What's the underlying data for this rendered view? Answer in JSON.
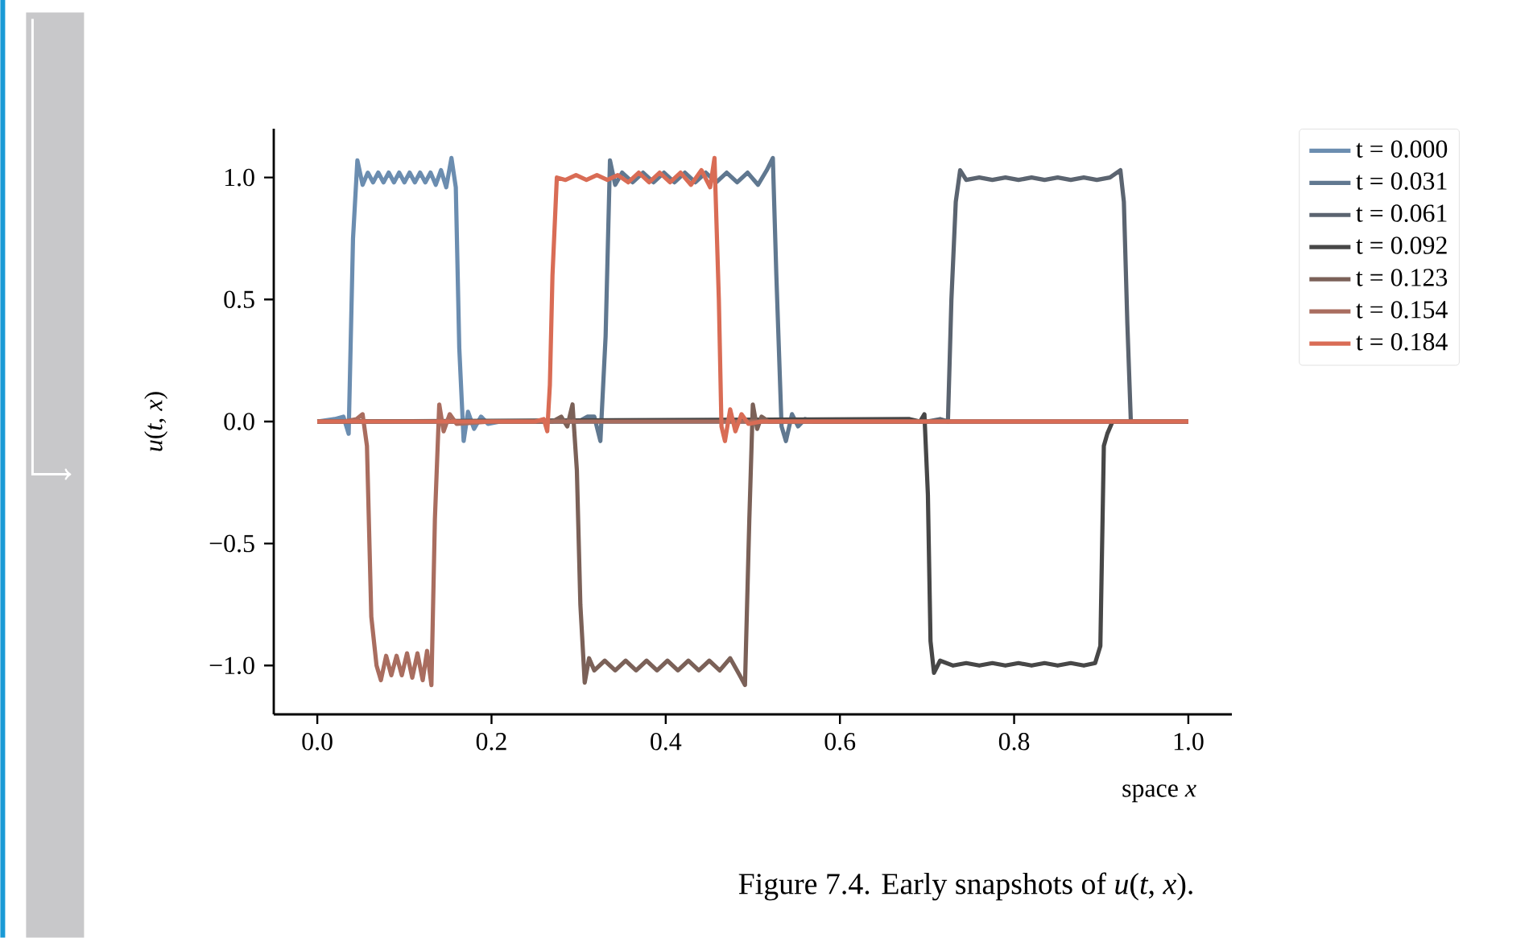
{
  "chart_data": {
    "type": "line",
    "xlabel": "space *x*",
    "ylabel": "*u*(*t*, *x*)",
    "xlim": [
      -0.05,
      1.05
    ],
    "ylim": [
      -1.2,
      1.2
    ],
    "xticks": [
      {
        "value": 0,
        "label": "0.0"
      },
      {
        "value": 0.2,
        "label": "0.2"
      },
      {
        "value": 0.4,
        "label": "0.4"
      },
      {
        "value": 0.6,
        "label": "0.6"
      },
      {
        "value": 0.8,
        "label": "0.8"
      },
      {
        "value": 1,
        "label": "1.0"
      }
    ],
    "yticks": [
      {
        "value": -1,
        "label": "−1.0"
      },
      {
        "value": -0.5,
        "label": "−0.5"
      },
      {
        "value": 0,
        "label": "0.0"
      },
      {
        "value": 0.5,
        "label": "0.5"
      },
      {
        "value": 1,
        "label": "1.0"
      }
    ],
    "legend": "top right",
    "marker": "none",
    "line_style": "solid",
    "grid": false,
    "annotations": [
      "Figure 7.4. Early snapshots of *u*(*t*, *x*)."
    ],
    "series": [
      {
        "name": "t = 0.000",
        "color": "#6b8db0",
        "x": [
          0,
          0.02,
          0.03,
          0.036,
          0.041,
          0.046,
          0.052,
          0.058,
          0.064,
          0.07,
          0.076,
          0.082,
          0.088,
          0.094,
          0.1,
          0.106,
          0.112,
          0.118,
          0.124,
          0.13,
          0.136,
          0.142,
          0.148,
          0.154,
          0.159,
          0.163,
          0.168,
          0.173,
          0.18,
          0.188,
          0.196,
          0.21,
          1.0
        ],
        "values": [
          0,
          0.01,
          0.02,
          -0.05,
          0.75,
          1.07,
          0.97,
          1.02,
          0.98,
          1.02,
          0.98,
          1.02,
          0.98,
          1.02,
          0.98,
          1.02,
          0.98,
          1.02,
          0.98,
          1.02,
          0.97,
          1.03,
          0.96,
          1.08,
          0.96,
          0.3,
          -0.08,
          0.04,
          -0.03,
          0.02,
          -0.01,
          0,
          0
        ]
      },
      {
        "name": "t = 0.031",
        "color": "#607890",
        "x": [
          0,
          0.3,
          0.31,
          0.318,
          0.325,
          0.331,
          0.336,
          0.342,
          0.35,
          0.362,
          0.374,
          0.386,
          0.398,
          0.41,
          0.422,
          0.434,
          0.446,
          0.458,
          0.47,
          0.482,
          0.494,
          0.506,
          0.516,
          0.523,
          0.527,
          0.533,
          0.538,
          0.545,
          0.552,
          0.56,
          0.57,
          0.6,
          1.0
        ],
        "values": [
          0,
          0,
          0.02,
          0.02,
          -0.08,
          0.35,
          1.07,
          0.97,
          1.02,
          0.98,
          1.02,
          0.98,
          1.02,
          0.98,
          1.02,
          0.98,
          1.02,
          0.98,
          1.02,
          0.98,
          1.02,
          0.97,
          1.03,
          1.08,
          0.6,
          -0.02,
          -0.08,
          0.03,
          -0.02,
          0.01,
          0,
          0,
          0
        ]
      },
      {
        "name": "t = 0.061",
        "color": "#5b6470",
        "x": [
          0,
          0.7,
          0.715,
          0.724,
          0.728,
          0.733,
          0.738,
          0.745,
          0.76,
          0.775,
          0.79,
          0.805,
          0.82,
          0.835,
          0.85,
          0.865,
          0.88,
          0.895,
          0.91,
          0.922,
          0.926,
          0.93,
          0.934,
          0.94,
          1.0
        ],
        "values": [
          0,
          0,
          0.01,
          0,
          0.5,
          0.9,
          1.03,
          0.99,
          1.0,
          0.99,
          1.0,
          0.99,
          1.0,
          0.99,
          1.0,
          0.99,
          1.0,
          0.99,
          1.0,
          1.03,
          0.9,
          0.4,
          0,
          0,
          0
        ]
      },
      {
        "name": "t = 0.092",
        "color": "#474747",
        "x": [
          0,
          0.68,
          0.692,
          0.697,
          0.701,
          0.704,
          0.708,
          0.715,
          0.73,
          0.745,
          0.76,
          0.775,
          0.79,
          0.805,
          0.82,
          0.835,
          0.85,
          0.865,
          0.88,
          0.893,
          0.899,
          0.903,
          0.907,
          0.913,
          1.0
        ],
        "values": [
          0,
          0.01,
          0,
          0.03,
          -0.3,
          -0.9,
          -1.03,
          -0.98,
          -1.0,
          -0.99,
          -1.0,
          -0.99,
          -1.0,
          -0.99,
          -1.0,
          -0.99,
          -1.0,
          -0.99,
          -1.0,
          -0.99,
          -0.92,
          -0.1,
          -0.05,
          0,
          0
        ]
      },
      {
        "name": "t = 0.123",
        "color": "#7b6158",
        "x": [
          0,
          0.27,
          0.28,
          0.287,
          0.293,
          0.298,
          0.302,
          0.307,
          0.312,
          0.318,
          0.33,
          0.342,
          0.354,
          0.366,
          0.378,
          0.39,
          0.402,
          0.414,
          0.426,
          0.438,
          0.45,
          0.462,
          0.474,
          0.485,
          0.491,
          0.496,
          0.5,
          0.505,
          0.51,
          0.518,
          0.53,
          1.0
        ],
        "values": [
          0,
          0,
          0.02,
          -0.02,
          0.07,
          -0.2,
          -0.75,
          -1.07,
          -0.97,
          -1.02,
          -0.98,
          -1.02,
          -0.98,
          -1.02,
          -0.98,
          -1.02,
          -0.98,
          -1.02,
          -0.98,
          -1.02,
          -0.98,
          -1.02,
          -0.97,
          -1.04,
          -1.08,
          -0.4,
          0.07,
          -0.03,
          0.02,
          0,
          0,
          0
        ]
      },
      {
        "name": "t = 0.154",
        "color": "#a96d5f",
        "x": [
          0,
          0.03,
          0.045,
          0.052,
          0.057,
          0.062,
          0.068,
          0.073,
          0.079,
          0.085,
          0.091,
          0.097,
          0.103,
          0.109,
          0.115,
          0.121,
          0.126,
          0.131,
          0.135,
          0.14,
          0.145,
          0.152,
          0.16,
          0.2,
          1.0
        ],
        "values": [
          0,
          0,
          0.01,
          0.03,
          -0.1,
          -0.8,
          -1.0,
          -1.06,
          -0.96,
          -1.04,
          -0.96,
          -1.04,
          -0.95,
          -1.05,
          -0.95,
          -1.06,
          -0.94,
          -1.08,
          -0.4,
          0.07,
          -0.04,
          0.03,
          -0.01,
          0,
          0
        ]
      },
      {
        "name": "t = 0.184",
        "color": "#d96c55",
        "x": [
          0,
          0.25,
          0.26,
          0.264,
          0.267,
          0.27,
          0.275,
          0.285,
          0.297,
          0.309,
          0.321,
          0.333,
          0.345,
          0.357,
          0.369,
          0.381,
          0.393,
          0.405,
          0.417,
          0.429,
          0.441,
          0.451,
          0.456,
          0.461,
          0.464,
          0.468,
          0.474,
          0.48,
          0.487,
          0.495,
          0.51,
          1.0
        ],
        "values": [
          0,
          0,
          0.01,
          -0.04,
          0.15,
          0.6,
          1.0,
          0.99,
          1.01,
          0.99,
          1.01,
          0.99,
          1.01,
          0.98,
          1.02,
          0.98,
          1.02,
          0.98,
          1.02,
          0.97,
          1.03,
          0.96,
          1.08,
          0.5,
          -0.02,
          -0.08,
          0.05,
          -0.04,
          0.03,
          -0.01,
          0,
          0
        ]
      }
    ]
  }
}
